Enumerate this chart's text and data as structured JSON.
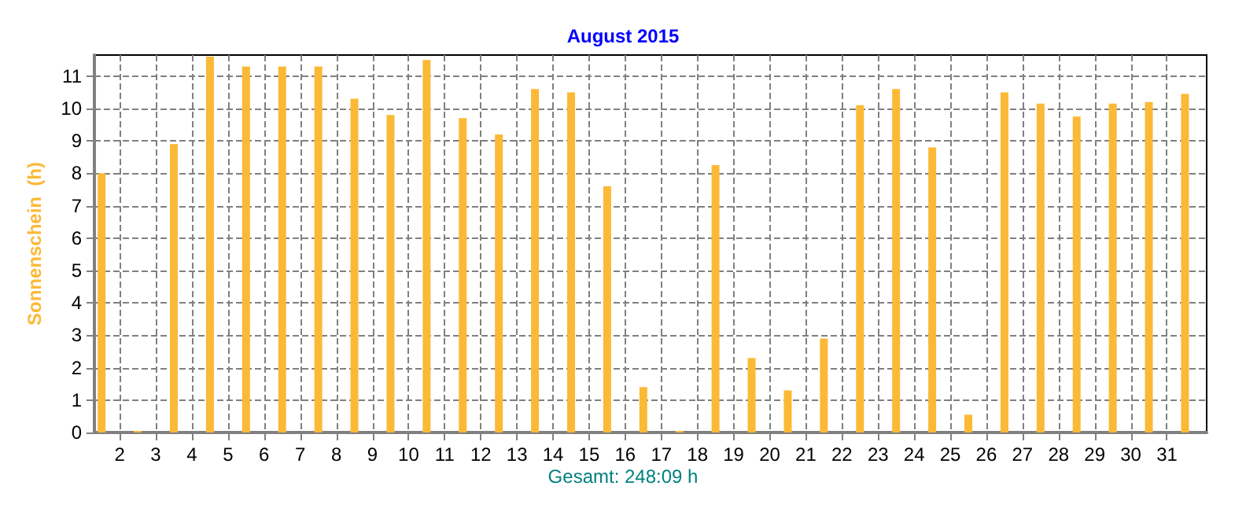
{
  "chart_data": {
    "type": "bar",
    "title": "August 2015",
    "ylabel": "Sonnenschein  (h)",
    "annotations": [
      "Gesamt: 248:09 h"
    ],
    "x": [
      1.5,
      2.5,
      3.5,
      4.5,
      5.5,
      6.5,
      7.5,
      8.5,
      9.5,
      10.5,
      11.5,
      12.5,
      13.5,
      14.5,
      15.5,
      16.5,
      17.5,
      18.5,
      19.5,
      20.5,
      21.5,
      22.5,
      23.5,
      24.5,
      25.5,
      26.5,
      27.5,
      28.5,
      29.5,
      30.5,
      31.5
    ],
    "series": [
      {
        "color": "#fbb936",
        "values": [
          8.0,
          0.05,
          8.9,
          11.6,
          11.3,
          11.3,
          11.3,
          10.3,
          9.8,
          11.5,
          9.7,
          9.2,
          10.6,
          10.5,
          7.6,
          1.4,
          0.05,
          8.25,
          2.3,
          1.3,
          2.9,
          10.1,
          10.6,
          8.8,
          0.55,
          10.5,
          10.15,
          9.75,
          10.15,
          10.2,
          10.45
        ]
      }
    ],
    "xlim": [
      1.3,
      32.1
    ],
    "xticks": [
      2,
      3,
      4,
      5,
      6,
      7,
      8,
      9,
      10,
      11,
      12,
      13,
      14,
      15,
      16,
      17,
      18,
      19,
      20,
      21,
      22,
      23,
      24,
      25,
      26,
      27,
      28,
      29,
      30,
      31
    ],
    "ylim": [
      0,
      11.65
    ],
    "yticks": [
      0,
      1,
      2,
      3,
      4,
      5,
      6,
      7,
      8,
      9,
      10,
      11
    ],
    "grid": true
  }
}
